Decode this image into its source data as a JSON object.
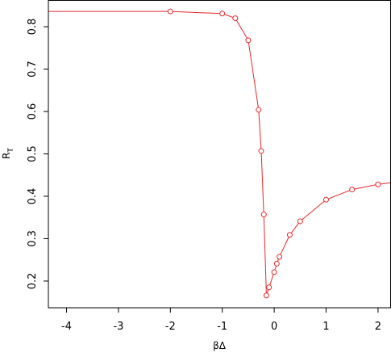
{
  "colors": {
    "series": "#e8282b",
    "axis": "#000000",
    "background": "#ffffff"
  },
  "chart_data": {
    "type": "line",
    "title": "",
    "xlabel": "βΔ",
    "ylabel_main": "R",
    "ylabel_sub": "T",
    "xlim": [
      -4.35,
      2.25
    ],
    "ylim": [
      0.137,
      0.863
    ],
    "x_ticks": [
      -4,
      -3,
      -2,
      -1,
      0,
      1,
      2
    ],
    "x_tick_labels": [
      "-4",
      "-3",
      "-2",
      "-1",
      "0",
      "1",
      "2"
    ],
    "y_ticks": [
      0.2,
      0.3,
      0.4,
      0.5,
      0.6,
      0.7,
      0.8
    ],
    "y_tick_labels": [
      "0.2",
      "0.3",
      "0.4",
      "0.5",
      "0.6",
      "0.7",
      "0.8"
    ],
    "grid": false,
    "legend": "none",
    "curve": {
      "x": [
        -4.35,
        -2.0,
        -1.0,
        -0.75,
        -0.5,
        -0.3,
        -0.25,
        -0.2,
        -0.15,
        -0.1,
        0.0,
        0.05,
        0.1,
        0.3,
        0.5,
        1.0,
        1.5,
        2.0,
        2.25
      ],
      "y": [
        0.836,
        0.836,
        0.831,
        0.82,
        0.768,
        0.604,
        0.507,
        0.357,
        0.166,
        0.185,
        0.221,
        0.241,
        0.257,
        0.309,
        0.341,
        0.392,
        0.416,
        0.428,
        0.432
      ]
    },
    "points": {
      "x": [
        -2.0,
        -1.0,
        -0.75,
        -0.5,
        -0.3,
        -0.25,
        -0.2,
        -0.15,
        -0.1,
        0.0,
        0.05,
        0.1,
        0.3,
        0.5,
        1.0,
        1.5,
        2.0
      ],
      "y": [
        0.836,
        0.831,
        0.82,
        0.768,
        0.604,
        0.507,
        0.357,
        0.166,
        0.185,
        0.221,
        0.241,
        0.257,
        0.309,
        0.341,
        0.392,
        0.416,
        0.428
      ]
    }
  }
}
